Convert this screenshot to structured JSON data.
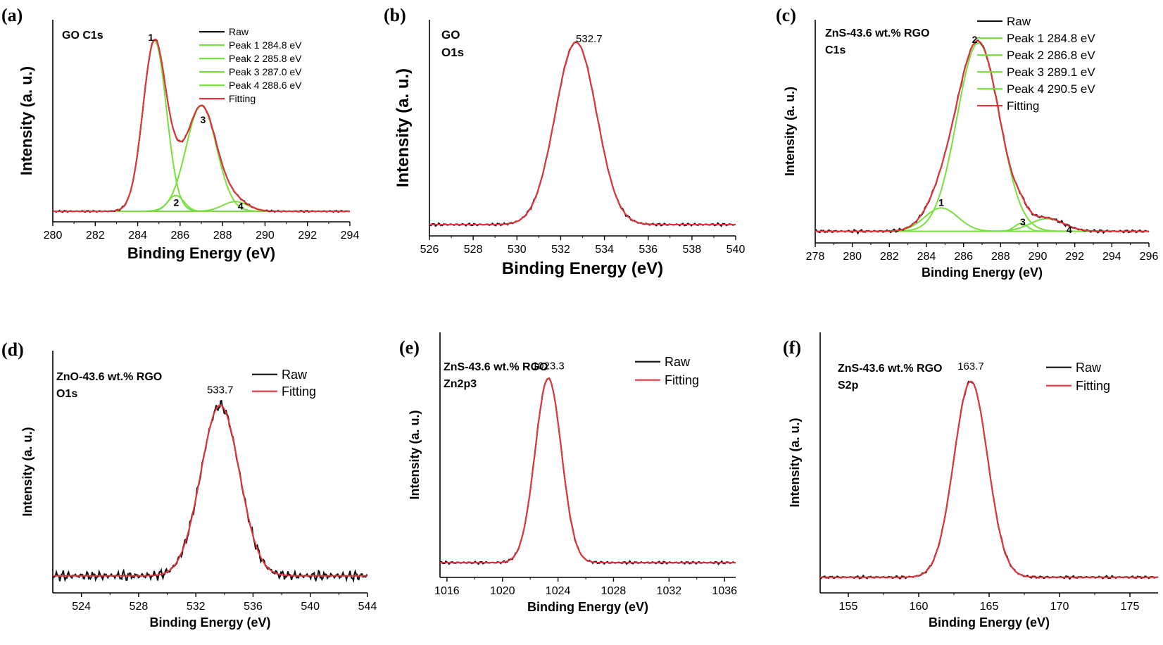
{
  "colors": {
    "raw": "#111111",
    "fit": "#e8323c",
    "peak": "#78e03c",
    "axis": "#000000"
  },
  "chart_data": [
    {
      "panel_label": "(a)",
      "type": "line",
      "annotation_lines": [
        "GO  C1s"
      ],
      "xlabel": "Binding Energy (eV)",
      "ylabel": "Intensity (a. u.)",
      "xlim": [
        280,
        294
      ],
      "xticks": [
        280,
        282,
        284,
        286,
        288,
        290,
        292,
        294
      ],
      "ylim": [
        -0.03,
        1.12
      ],
      "baseline": 0.03,
      "noise": 0.004,
      "peaks": [
        {
          "number": "1",
          "center": 284.8,
          "height": 0.97,
          "sigma": 0.55,
          "label_pos": [
            284.62,
            1.0
          ]
        },
        {
          "number": "2",
          "center": 285.8,
          "height": 0.09,
          "sigma": 0.38,
          "label_pos": [
            285.82,
            0.06
          ]
        },
        {
          "number": "3",
          "center": 287.0,
          "height": 0.6,
          "sigma": 0.72,
          "label_pos": [
            287.08,
            0.53
          ]
        },
        {
          "number": "4",
          "center": 288.6,
          "height": 0.055,
          "sigma": 0.6,
          "label_pos": [
            288.85,
            0.04
          ]
        }
      ],
      "series": [
        {
          "name": "Raw",
          "label": "Raw"
        },
        {
          "name": "Peak 1",
          "label": "Peak 1 284.8 eV"
        },
        {
          "name": "Peak 2",
          "label": "Peak 2 285.8 eV"
        },
        {
          "name": "Peak 3",
          "label": "Peak 3 287.0 eV"
        },
        {
          "name": "Peak 4",
          "label": "Peak 4 288.6 eV"
        },
        {
          "name": "Fitting",
          "label": "Fitting"
        }
      ],
      "legend_position": "top-right"
    },
    {
      "panel_label": "(b)",
      "type": "line",
      "annotation_lines": [
        "GO",
        "O1s"
      ],
      "xlabel": "Binding Energy (eV)",
      "ylabel": "Intensity (a. u.)",
      "xlim": [
        526,
        540
      ],
      "xticks": [
        526,
        528,
        530,
        532,
        534,
        536,
        538,
        540
      ],
      "ylim": [
        -0.03,
        1.12
      ],
      "baseline": 0.03,
      "noise": 0.006,
      "peak_label": "532.7",
      "peak_label_pos": [
        533.3,
        1.0
      ],
      "peaks": [
        {
          "center": 532.7,
          "height": 0.97,
          "sigma": 0.95
        }
      ],
      "series": [],
      "legend_position": "none"
    },
    {
      "panel_label": "(c)",
      "type": "line",
      "annotation_lines": [
        "ZnS-43.6 wt.% RGO",
        "C1s"
      ],
      "xlabel": "Binding Energy (eV)",
      "ylabel": "Intensity (a. u.)",
      "xlim": [
        278,
        296
      ],
      "xticks": [
        278,
        280,
        282,
        284,
        286,
        288,
        290,
        292,
        294,
        296
      ],
      "ylim": [
        -0.03,
        1.12
      ],
      "baseline": 0.03,
      "noise": 0.007,
      "peaks": [
        {
          "number": "1",
          "center": 284.8,
          "height": 0.12,
          "sigma": 0.9,
          "label_pos": [
            284.8,
            0.16
          ]
        },
        {
          "number": "2",
          "center": 286.8,
          "height": 0.97,
          "sigma": 1.15,
          "label_pos": [
            286.6,
            1.0
          ]
        },
        {
          "number": "3",
          "center": 289.1,
          "height": 0.04,
          "sigma": 0.35,
          "label_pos": [
            289.2,
            0.06
          ]
        },
        {
          "number": "4",
          "center": 290.5,
          "height": 0.065,
          "sigma": 0.9,
          "label_pos": [
            291.7,
            0.02
          ]
        }
      ],
      "series": [
        {
          "name": "Raw",
          "label": "Raw"
        },
        {
          "name": "Peak 1",
          "label": "Peak 1 284.8 eV"
        },
        {
          "name": "Peak 2",
          "label": "Peak 2 286.8 eV"
        },
        {
          "name": "Peak 3",
          "label": "Peak 3 289.1 eV"
        },
        {
          "name": "Peak 4",
          "label": "Peak 4 290.5 eV"
        },
        {
          "name": "Fitting",
          "label": "Fitting"
        }
      ],
      "legend_position": "top-right"
    },
    {
      "panel_label": "(d)",
      "type": "line",
      "annotation_lines": [
        "ZnO-43.6 wt.% RGO",
        "O1s"
      ],
      "xlabel": "Binding Energy (eV)",
      "ylabel": "Intensity (a. u.)",
      "xlim": [
        522,
        544
      ],
      "xticks": [
        524,
        528,
        532,
        536,
        540,
        544
      ],
      "ylim": [
        -0.1,
        1.32
      ],
      "baseline": 0.0,
      "noise": 0.025,
      "peak_label": "533.7",
      "peak_label_pos": [
        533.7,
        1.07
      ],
      "peaks": [
        {
          "center": 533.7,
          "height": 1.0,
          "sigma": 1.35
        }
      ],
      "series": [
        {
          "name": "Raw",
          "label": "Raw"
        },
        {
          "name": "Fitting",
          "label": "Fitting"
        }
      ],
      "legend_position": "top-right"
    },
    {
      "panel_label": "(e)",
      "type": "line",
      "annotation_lines": [
        "ZnS-43.6 wt.% RGO",
        "Zn2p3"
      ],
      "xlabel": "Binding Energy (eV)",
      "ylabel": "Intensity (a. u.)",
      "xlim": [
        1015.5,
        1036.8
      ],
      "xticks": [
        1016,
        1020,
        1024,
        1028,
        1032,
        1036
      ],
      "ylim": [
        -0.08,
        1.25
      ],
      "baseline": 0.0,
      "noise": 0.006,
      "peak_label": "1023.3",
      "peak_label_pos": [
        1023.3,
        1.05
      ],
      "peaks": [
        {
          "center": 1023.3,
          "height": 1.0,
          "sigma": 0.95
        }
      ],
      "series": [
        {
          "name": "Raw",
          "label": "Raw"
        },
        {
          "name": "Fitting",
          "label": "Fitting"
        }
      ],
      "legend_position": "top-right"
    },
    {
      "panel_label": "(f)",
      "type": "line",
      "annotation_lines": [
        "ZnS-43.6 wt.% RGO",
        "S2p"
      ],
      "xlabel": "Binding Energy (eV)",
      "ylabel": "Intensity (a. u.)",
      "xlim": [
        153,
        177
      ],
      "xticks": [
        155,
        160,
        165,
        170,
        175
      ],
      "ylim": [
        -0.08,
        1.25
      ],
      "baseline": 0.0,
      "noise": 0.006,
      "peak_label": "163.7",
      "peak_label_pos": [
        163.7,
        1.06
      ],
      "peaks": [
        {
          "center": 163.7,
          "height": 1.0,
          "sigma": 1.2
        }
      ],
      "series": [
        {
          "name": "Raw",
          "label": "Raw"
        },
        {
          "name": "Fitting",
          "label": "Fitting"
        }
      ],
      "legend_position": "top-right"
    }
  ]
}
